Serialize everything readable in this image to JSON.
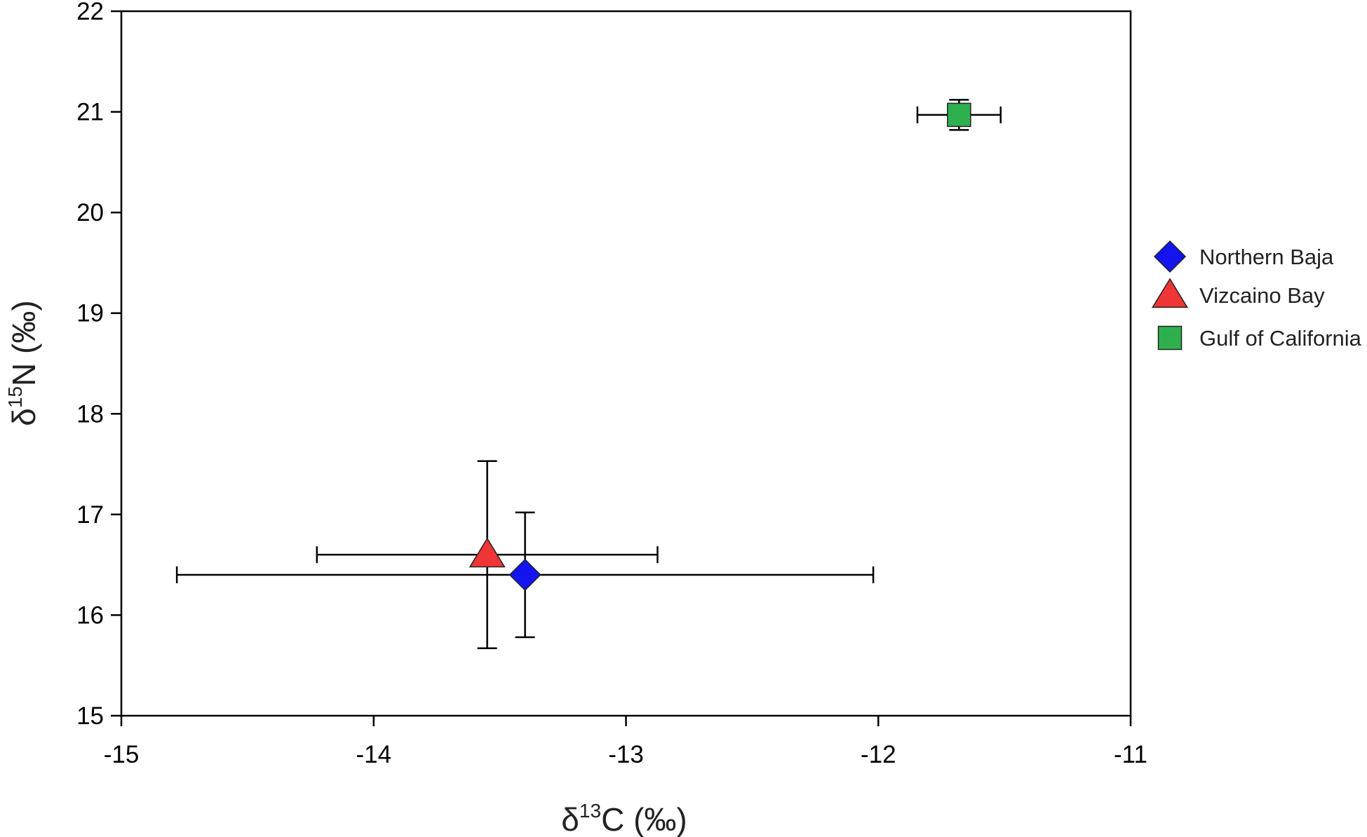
{
  "chart_data": {
    "type": "scatter",
    "xlabel": {
      "prefix": "δ",
      "sup": "13",
      "main": "C (‰)"
    },
    "ylabel": {
      "prefix": "δ",
      "sup": "15",
      "main": "N (‰)"
    },
    "xlim": [
      -15,
      -11
    ],
    "ylim": [
      15,
      22
    ],
    "x_ticks": [
      "-15",
      "-14",
      "-13",
      "-12",
      "-11"
    ],
    "y_ticks": [
      "15",
      "16",
      "17",
      "18",
      "19",
      "20",
      "21",
      "22"
    ],
    "grid": false,
    "legend_position": "right",
    "series": [
      {
        "name": "Northern Baja",
        "marker": "diamond",
        "color": "#1414f0",
        "x": -13.4,
        "y": 16.4,
        "x_err": 1.38,
        "y_err": 0.62
      },
      {
        "name": "Vizcaino Bay",
        "marker": "triangle",
        "color": "#ef3535",
        "x": -13.55,
        "y": 16.6,
        "x_err": 0.675,
        "y_err": 0.93
      },
      {
        "name": "Gulf of California",
        "marker": "square",
        "color": "#2fb04f",
        "x": -11.68,
        "y": 20.97,
        "x_err": 0.165,
        "y_err": 0.15
      }
    ]
  }
}
